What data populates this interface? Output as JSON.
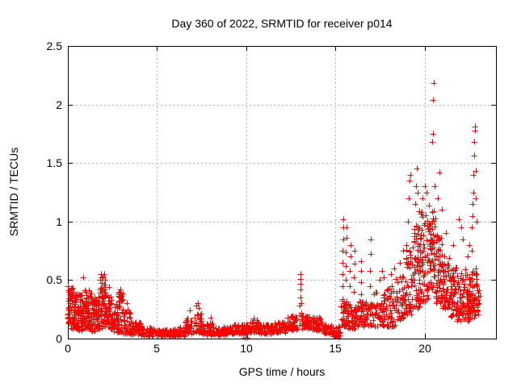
{
  "chart_data": {
    "type": "scatter",
    "title": "Day 360 of 2022, SRMTID for receiver p014",
    "xlabel": "GPS time / hours",
    "ylabel": "SRMTID / TECUs",
    "xlim": [
      0,
      24
    ],
    "ylim": [
      0,
      2.5
    ],
    "xticks": [
      0,
      5,
      10,
      15,
      20
    ],
    "yticks": [
      0,
      0.5,
      1,
      1.5,
      2,
      2.5
    ],
    "xtick_labels": [
      "0",
      "5",
      "10",
      "15",
      "20"
    ],
    "ytick_labels": [
      "0",
      "0.5",
      "1",
      "1.5",
      "2",
      "2.5"
    ],
    "grid": true,
    "legend_position": "none",
    "marker": "plus",
    "marker_color": "#ff0000",
    "grid_color": "#b0b0b0",
    "axis_color": "#000000",
    "background_color": "#ffffff",
    "data_start_hour": 0.0,
    "data_end_hour": 23.1,
    "peak_value": 2.18,
    "peak_hour": 20.5,
    "peak_points": [
      [
        0.86,
        0.52
      ],
      [
        1.8,
        0.5
      ],
      [
        1.84,
        0.55
      ],
      [
        1.88,
        0.52
      ],
      [
        2.0,
        0.53
      ],
      [
        2.05,
        0.55
      ],
      [
        2.1,
        0.5
      ],
      [
        2.3,
        0.44
      ],
      [
        2.9,
        0.4
      ],
      [
        2.92,
        0.36
      ],
      [
        2.95,
        0.42
      ],
      [
        3.0,
        0.38
      ],
      [
        3.05,
        0.33
      ],
      [
        3.3,
        0.3
      ],
      [
        6.85,
        0.24
      ],
      [
        7.2,
        0.28
      ],
      [
        7.3,
        0.3
      ],
      [
        7.35,
        0.26
      ],
      [
        8.0,
        0.18
      ],
      [
        9.9,
        0.01
      ],
      [
        10.05,
        0.01
      ],
      [
        10.4,
        0.17
      ],
      [
        12.6,
        0.19
      ],
      [
        12.98,
        0.12
      ],
      [
        13.0,
        0.2
      ],
      [
        13.0,
        0.28
      ],
      [
        13.02,
        0.35
      ],
      [
        13.02,
        0.42
      ],
      [
        13.04,
        0.47
      ],
      [
        13.04,
        0.51
      ],
      [
        13.05,
        0.55
      ],
      [
        13.08,
        0.3
      ],
      [
        13.1,
        0.22
      ],
      [
        13.12,
        0.15
      ],
      [
        15.15,
        0.01
      ],
      [
        15.4,
        0.45
      ],
      [
        15.4,
        0.55
      ],
      [
        15.41,
        0.65
      ],
      [
        15.41,
        0.75
      ],
      [
        15.42,
        0.85
      ],
      [
        15.42,
        0.95
      ],
      [
        15.43,
        1.02
      ],
      [
        15.58,
        0.5
      ],
      [
        15.58,
        0.62
      ],
      [
        15.59,
        0.74
      ],
      [
        15.6,
        0.86
      ],
      [
        15.6,
        0.95
      ],
      [
        15.82,
        0.45
      ],
      [
        15.82,
        0.58
      ],
      [
        15.83,
        0.7
      ],
      [
        15.84,
        0.8
      ],
      [
        16.05,
        0.4
      ],
      [
        16.05,
        0.52
      ],
      [
        16.06,
        0.64
      ],
      [
        16.07,
        0.75
      ],
      [
        16.42,
        0.38
      ],
      [
        16.42,
        0.48
      ],
      [
        16.43,
        0.58
      ],
      [
        16.44,
        0.66
      ],
      [
        16.95,
        0.45
      ],
      [
        16.95,
        0.58
      ],
      [
        16.96,
        0.72
      ],
      [
        16.97,
        0.85
      ],
      [
        17.5,
        0.5
      ],
      [
        17.6,
        0.58
      ],
      [
        17.7,
        0.52
      ],
      [
        18.1,
        0.55
      ],
      [
        18.3,
        0.6
      ],
      [
        18.6,
        0.65
      ],
      [
        18.8,
        0.75
      ],
      [
        19.05,
        1.0
      ],
      [
        19.1,
        1.2
      ],
      [
        19.15,
        1.35
      ],
      [
        19.2,
        1.4
      ],
      [
        19.45,
        1.15
      ],
      [
        19.5,
        1.3
      ],
      [
        19.55,
        1.45
      ],
      [
        19.6,
        1.25
      ],
      [
        19.9,
        1.2
      ],
      [
        20.0,
        1.3
      ],
      [
        20.1,
        1.25
      ],
      [
        20.42,
        1.68
      ],
      [
        20.45,
        1.75
      ],
      [
        20.48,
        2.04
      ],
      [
        20.5,
        2.18
      ],
      [
        20.55,
        1.3
      ],
      [
        20.75,
        1.2
      ],
      [
        20.85,
        1.42
      ],
      [
        20.95,
        1.1
      ],
      [
        21.2,
        0.9
      ],
      [
        21.6,
        0.8
      ],
      [
        21.9,
        1.02
      ],
      [
        22.05,
        0.95
      ],
      [
        22.15,
        0.85
      ],
      [
        22.4,
        0.7
      ],
      [
        22.5,
        0.8
      ],
      [
        22.62,
        0.75
      ],
      [
        22.65,
        0.95
      ],
      [
        22.68,
        1.05
      ],
      [
        22.7,
        1.15
      ],
      [
        22.72,
        1.25
      ],
      [
        22.74,
        1.4
      ],
      [
        22.76,
        1.56
      ],
      [
        22.78,
        1.68
      ],
      [
        22.8,
        1.78
      ],
      [
        22.82,
        1.81
      ],
      [
        22.85,
        1.43
      ],
      [
        22.88,
        1.2
      ],
      [
        22.9,
        1.0
      ]
    ],
    "noise_bands": [
      [
        0.0,
        0.15,
        0.12,
        0.46,
        26
      ],
      [
        0.15,
        0.5,
        0.08,
        0.44,
        60
      ],
      [
        0.5,
        0.9,
        0.07,
        0.38,
        60
      ],
      [
        0.9,
        1.3,
        0.08,
        0.42,
        62
      ],
      [
        1.3,
        1.6,
        0.06,
        0.35,
        45
      ],
      [
        1.6,
        1.9,
        0.08,
        0.45,
        46
      ],
      [
        1.9,
        2.2,
        0.1,
        0.48,
        46
      ],
      [
        2.2,
        2.5,
        0.08,
        0.38,
        40
      ],
      [
        2.5,
        2.8,
        0.05,
        0.3,
        36
      ],
      [
        2.8,
        3.1,
        0.05,
        0.4,
        36
      ],
      [
        3.1,
        3.5,
        0.04,
        0.25,
        40
      ],
      [
        3.5,
        4.1,
        0.03,
        0.15,
        46
      ],
      [
        4.1,
        5.0,
        0.02,
        0.09,
        56
      ],
      [
        5.0,
        6.0,
        0.02,
        0.08,
        60
      ],
      [
        6.0,
        6.6,
        0.02,
        0.1,
        40
      ],
      [
        6.6,
        7.0,
        0.04,
        0.18,
        30
      ],
      [
        7.0,
        7.5,
        0.05,
        0.22,
        36
      ],
      [
        7.5,
        8.2,
        0.03,
        0.13,
        46
      ],
      [
        8.2,
        9.0,
        0.03,
        0.1,
        50
      ],
      [
        9.0,
        9.8,
        0.04,
        0.12,
        55
      ],
      [
        9.8,
        10.2,
        0.03,
        0.13,
        30
      ],
      [
        10.2,
        10.7,
        0.05,
        0.16,
        36
      ],
      [
        10.7,
        11.6,
        0.04,
        0.12,
        60
      ],
      [
        11.6,
        12.3,
        0.05,
        0.14,
        50
      ],
      [
        12.3,
        12.9,
        0.07,
        0.19,
        46
      ],
      [
        13.1,
        13.6,
        0.08,
        0.2,
        40
      ],
      [
        13.6,
        14.3,
        0.07,
        0.18,
        50
      ],
      [
        14.3,
        14.8,
        0.04,
        0.12,
        36
      ],
      [
        14.8,
        15.3,
        0.02,
        0.1,
        30
      ],
      [
        15.3,
        15.5,
        0.1,
        0.35,
        22
      ],
      [
        15.5,
        15.7,
        0.1,
        0.32,
        20
      ],
      [
        15.7,
        15.95,
        0.08,
        0.3,
        20
      ],
      [
        15.95,
        16.2,
        0.08,
        0.28,
        20
      ],
      [
        16.2,
        16.6,
        0.1,
        0.32,
        30
      ],
      [
        16.6,
        17.1,
        0.1,
        0.35,
        36
      ],
      [
        17.1,
        17.8,
        0.1,
        0.4,
        50
      ],
      [
        17.8,
        18.4,
        0.1,
        0.45,
        46
      ],
      [
        18.4,
        18.9,
        0.15,
        0.55,
        40
      ],
      [
        18.9,
        19.3,
        0.2,
        0.8,
        46
      ],
      [
        19.3,
        19.7,
        0.25,
        1.0,
        56
      ],
      [
        19.7,
        20.2,
        0.3,
        1.1,
        66
      ],
      [
        20.2,
        20.6,
        0.4,
        1.15,
        56
      ],
      [
        20.6,
        21.0,
        0.3,
        0.92,
        56
      ],
      [
        21.0,
        21.4,
        0.25,
        0.75,
        50
      ],
      [
        21.4,
        21.8,
        0.18,
        0.65,
        50
      ],
      [
        21.8,
        22.3,
        0.15,
        0.6,
        56
      ],
      [
        22.3,
        22.6,
        0.15,
        0.55,
        40
      ],
      [
        22.6,
        22.95,
        0.18,
        0.6,
        46
      ],
      [
        22.95,
        23.1,
        0.18,
        0.5,
        10
      ]
    ]
  }
}
